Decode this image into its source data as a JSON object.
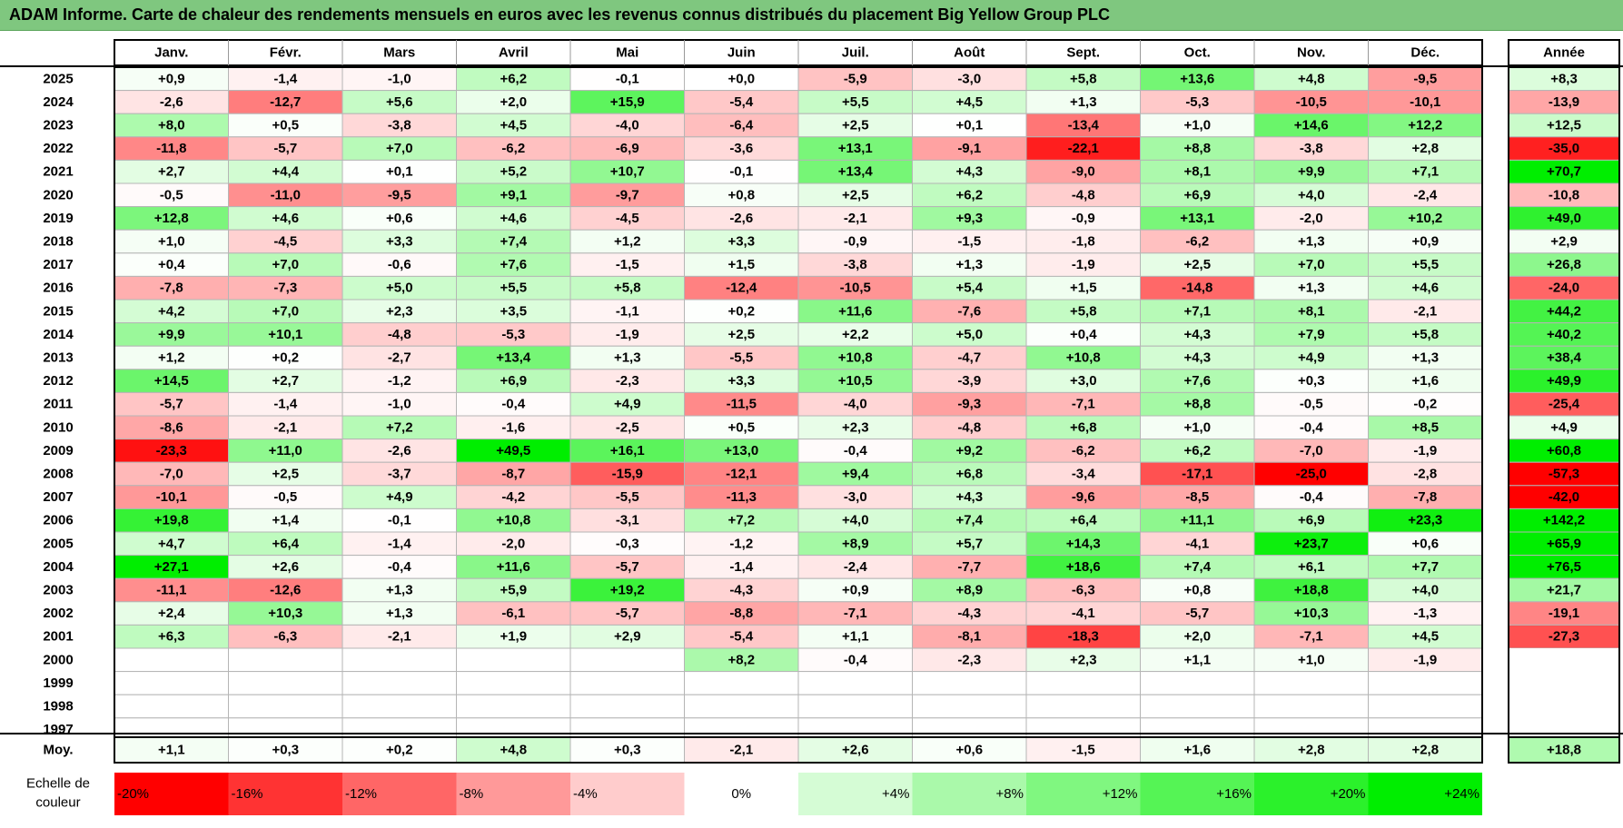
{
  "title": "ADAM Informe. Carte de chaleur des rendements mensuels en euros avec les revenus connus distribués du placement Big Yellow Group PLC",
  "colors": {
    "title_bg": "#7fc77f",
    "negative_max": "#ff0000",
    "positive_max": "#00ee00",
    "neutral": "#ffffff"
  },
  "chart_data": {
    "type": "heatmap",
    "title": "ADAM Informe. Carte de chaleur des rendements mensuels en euros avec les revenus connus distribués du placement Big Yellow Group PLC",
    "columns": [
      "Janv.",
      "Févr.",
      "Mars",
      "Avril",
      "Mai",
      "Juin",
      "Juil.",
      "Août",
      "Sept.",
      "Oct.",
      "Nov.",
      "Déc."
    ],
    "year_column_label": "Année",
    "average_row_label": "Moy.",
    "scale_label_line1": "Echelle de",
    "scale_label_line2": "couleur",
    "rows": [
      {
        "year": "2025",
        "values": [
          "+0,9",
          "-1,4",
          "-1,0",
          "+6,2",
          "-0,1",
          "+0,0",
          "-5,9",
          "-3,0",
          "+5,8",
          "+13,6",
          "+4,8",
          "-9,5"
        ],
        "annual": "+8,3"
      },
      {
        "year": "2024",
        "values": [
          "-2,6",
          "-12,7",
          "+5,6",
          "+2,0",
          "+15,9",
          "-5,4",
          "+5,5",
          "+4,5",
          "+1,3",
          "-5,3",
          "-10,5",
          "-10,1"
        ],
        "annual": "-13,9"
      },
      {
        "year": "2023",
        "values": [
          "+8,0",
          "+0,5",
          "-3,8",
          "+4,5",
          "-4,0",
          "-6,4",
          "+2,5",
          "+0,1",
          "-13,4",
          "+1,0",
          "+14,6",
          "+12,2"
        ],
        "annual": "+12,5"
      },
      {
        "year": "2022",
        "values": [
          "-11,8",
          "-5,7",
          "+7,0",
          "-6,2",
          "-6,9",
          "-3,6",
          "+13,1",
          "-9,1",
          "-22,1",
          "+8,8",
          "-3,8",
          "+2,8"
        ],
        "annual": "-35,0"
      },
      {
        "year": "2021",
        "values": [
          "+2,7",
          "+4,4",
          "+0,1",
          "+5,2",
          "+10,7",
          "-0,1",
          "+13,4",
          "+4,3",
          "-9,0",
          "+8,1",
          "+9,9",
          "+7,1"
        ],
        "annual": "+70,7"
      },
      {
        "year": "2020",
        "values": [
          "-0,5",
          "-11,0",
          "-9,5",
          "+9,1",
          "-9,7",
          "+0,8",
          "+2,5",
          "+6,2",
          "-4,8",
          "+6,9",
          "+4,0",
          "-2,4"
        ],
        "annual": "-10,8"
      },
      {
        "year": "2019",
        "values": [
          "+12,8",
          "+4,6",
          "+0,6",
          "+4,6",
          "-4,5",
          "-2,6",
          "-2,1",
          "+9,3",
          "-0,9",
          "+13,1",
          "-2,0",
          "+10,2"
        ],
        "annual": "+49,0"
      },
      {
        "year": "2018",
        "values": [
          "+1,0",
          "-4,5",
          "+3,3",
          "+7,4",
          "+1,2",
          "+3,3",
          "-0,9",
          "-1,5",
          "-1,8",
          "-6,2",
          "+1,3",
          "+0,9"
        ],
        "annual": "+2,9"
      },
      {
        "year": "2017",
        "values": [
          "+0,4",
          "+7,0",
          "-0,6",
          "+7,6",
          "-1,5",
          "+1,5",
          "-3,8",
          "+1,3",
          "-1,9",
          "+2,5",
          "+7,0",
          "+5,5"
        ],
        "annual": "+26,8"
      },
      {
        "year": "2016",
        "values": [
          "-7,8",
          "-7,3",
          "+5,0",
          "+5,5",
          "+5,8",
          "-12,4",
          "-10,5",
          "+5,4",
          "+1,5",
          "-14,8",
          "+1,3",
          "+4,6"
        ],
        "annual": "-24,0"
      },
      {
        "year": "2015",
        "values": [
          "+4,2",
          "+7,0",
          "+2,3",
          "+3,5",
          "-1,1",
          "+0,2",
          "+11,6",
          "-7,6",
          "+5,8",
          "+7,1",
          "+8,1",
          "-2,1"
        ],
        "annual": "+44,2"
      },
      {
        "year": "2014",
        "values": [
          "+9,9",
          "+10,1",
          "-4,8",
          "-5,3",
          "-1,9",
          "+2,5",
          "+2,2",
          "+5,0",
          "+0,4",
          "+4,3",
          "+7,9",
          "+5,8"
        ],
        "annual": "+40,2"
      },
      {
        "year": "2013",
        "values": [
          "+1,2",
          "+0,2",
          "-2,7",
          "+13,4",
          "+1,3",
          "-5,5",
          "+10,8",
          "-4,7",
          "+10,8",
          "+4,3",
          "+4,9",
          "+1,3"
        ],
        "annual": "+38,4"
      },
      {
        "year": "2012",
        "values": [
          "+14,5",
          "+2,7",
          "-1,2",
          "+6,9",
          "-2,3",
          "+3,3",
          "+10,5",
          "-3,9",
          "+3,0",
          "+7,6",
          "+0,3",
          "+1,6"
        ],
        "annual": "+49,9"
      },
      {
        "year": "2011",
        "values": [
          "-5,7",
          "-1,4",
          "-1,0",
          "-0,4",
          "+4,9",
          "-11,5",
          "-4,0",
          "-9,3",
          "-7,1",
          "+8,8",
          "-0,5",
          "-0,2"
        ],
        "annual": "-25,4"
      },
      {
        "year": "2010",
        "values": [
          "-8,6",
          "-2,1",
          "+7,2",
          "-1,6",
          "-2,5",
          "+0,5",
          "+2,3",
          "-4,8",
          "+6,8",
          "+1,0",
          "-0,4",
          "+8,5"
        ],
        "annual": "+4,9"
      },
      {
        "year": "2009",
        "values": [
          "-23,3",
          "+11,0",
          "-2,6",
          "+49,5",
          "+16,1",
          "+13,0",
          "-0,4",
          "+9,2",
          "-6,2",
          "+6,2",
          "-7,0",
          "-1,9"
        ],
        "annual": "+60,8"
      },
      {
        "year": "2008",
        "values": [
          "-7,0",
          "+2,5",
          "-3,7",
          "-8,7",
          "-15,9",
          "-12,1",
          "+9,4",
          "+6,8",
          "-3,4",
          "-17,1",
          "-25,0",
          "-2,8"
        ],
        "annual": "-57,3"
      },
      {
        "year": "2007",
        "values": [
          "-10,1",
          "-0,5",
          "+4,9",
          "-4,2",
          "-5,5",
          "-11,3",
          "-3,0",
          "+4,3",
          "-9,6",
          "-8,5",
          "-0,4",
          "-7,8"
        ],
        "annual": "-42,0"
      },
      {
        "year": "2006",
        "values": [
          "+19,8",
          "+1,4",
          "-0,1",
          "+10,8",
          "-3,1",
          "+7,2",
          "+4,0",
          "+7,4",
          "+6,4",
          "+11,1",
          "+6,9",
          "+23,3"
        ],
        "annual": "+142,2"
      },
      {
        "year": "2005",
        "values": [
          "+4,7",
          "+6,4",
          "-1,4",
          "-2,0",
          "-0,3",
          "-1,2",
          "+8,9",
          "+5,7",
          "+14,3",
          "-4,1",
          "+23,7",
          "+0,6"
        ],
        "annual": "+65,9"
      },
      {
        "year": "2004",
        "values": [
          "+27,1",
          "+2,6",
          "-0,4",
          "+11,6",
          "-5,7",
          "-1,4",
          "-2,4",
          "-7,7",
          "+18,6",
          "+7,4",
          "+6,1",
          "+7,7"
        ],
        "annual": "+76,5"
      },
      {
        "year": "2003",
        "values": [
          "-11,1",
          "-12,6",
          "+1,3",
          "+5,9",
          "+19,2",
          "-4,3",
          "+0,9",
          "+8,9",
          "-6,3",
          "+0,8",
          "+18,8",
          "+4,0"
        ],
        "annual": "+21,7"
      },
      {
        "year": "2002",
        "values": [
          "+2,4",
          "+10,3",
          "+1,3",
          "-6,1",
          "-5,7",
          "-8,8",
          "-7,1",
          "-4,3",
          "-4,1",
          "-5,7",
          "+10,3",
          "-1,3"
        ],
        "annual": "-19,1"
      },
      {
        "year": "2001",
        "values": [
          "+6,3",
          "-6,3",
          "-2,1",
          "+1,9",
          "+2,9",
          "-5,4",
          "+1,1",
          "-8,1",
          "-18,3",
          "+2,0",
          "-7,1",
          "+4,5"
        ],
        "annual": "-27,3"
      },
      {
        "year": "2000",
        "values": [
          "",
          "",
          "",
          "",
          "",
          "+8,2",
          "-0,4",
          "-2,3",
          "+2,3",
          "+1,1",
          "+1,0",
          "-1,9"
        ],
        "annual": ""
      },
      {
        "year": "1999",
        "values": [
          "",
          "",
          "",
          "",
          "",
          "",
          "",
          "",
          "",
          "",
          "",
          ""
        ],
        "annual": ""
      },
      {
        "year": "1998",
        "values": [
          "",
          "",
          "",
          "",
          "",
          "",
          "",
          "",
          "",
          "",
          "",
          ""
        ],
        "annual": ""
      },
      {
        "year": "1997",
        "values": [
          "",
          "",
          "",
          "",
          "",
          "",
          "",
          "",
          "",
          "",
          "",
          ""
        ],
        "annual": ""
      }
    ],
    "averages": [
      "+1,1",
      "+0,3",
      "+0,2",
      "+4,8",
      "+0,3",
      "-2,1",
      "+2,6",
      "+0,6",
      "-1,5",
      "+1,6",
      "+2,8",
      "+2,8"
    ],
    "average_annual": "+18,8",
    "scale": [
      {
        "label": "-20%",
        "value": -20
      },
      {
        "label": "-16%",
        "value": -16
      },
      {
        "label": "-12%",
        "value": -12
      },
      {
        "label": "-8%",
        "value": -8
      },
      {
        "label": "-4%",
        "value": -4
      },
      {
        "label": "0%",
        "value": 0
      },
      {
        "label": "+4%",
        "value": 4
      },
      {
        "label": "+8%",
        "value": 8
      },
      {
        "label": "+12%",
        "value": 12
      },
      {
        "label": "+16%",
        "value": 16
      },
      {
        "label": "+20%",
        "value": 20
      },
      {
        "label": "+24%",
        "value": 24
      }
    ]
  }
}
